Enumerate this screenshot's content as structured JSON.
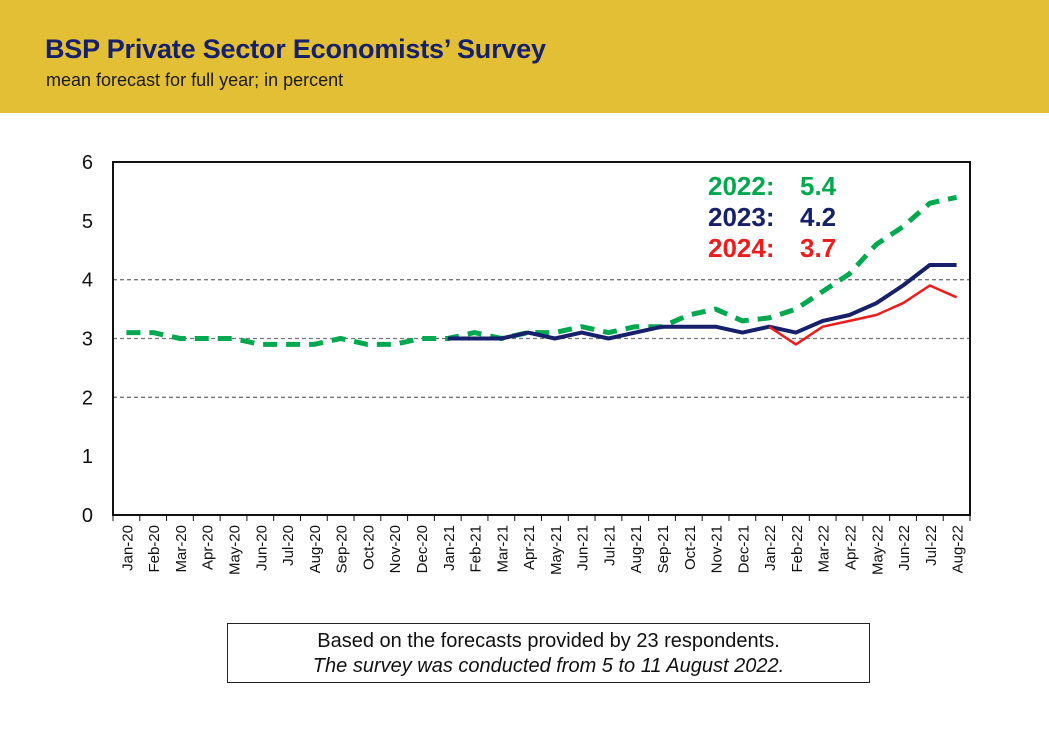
{
  "header": {
    "title": "BSP Private Sector Economists’ Survey",
    "subtitle": "mean forecast for full year; in percent"
  },
  "note": {
    "line1": "Based on the forecasts provided by 23 respondents.",
    "line2": "The survey was conducted from 5 to 11 August 2022."
  },
  "colors": {
    "header_bg": "#e2bf35",
    "title": "#16206b",
    "series_2022": "#00a94f",
    "series_2023": "#16206b",
    "series_2024": "#ee1c1c",
    "gridline": "#777777"
  },
  "chart_data": {
    "type": "line",
    "title": "",
    "xlabel": "",
    "ylabel": "",
    "ylim": [
      0,
      6
    ],
    "yticks": [
      "0",
      "1",
      "2",
      "3",
      "4",
      "5",
      "6"
    ],
    "gridlines_at": [
      2,
      3,
      4
    ],
    "categories": [
      "Jan-20",
      "Feb-20",
      "Mar-20",
      "Apr-20",
      "May-20",
      "Jun-20",
      "Jul-20",
      "Aug-20",
      "Sep-20",
      "Oct-20",
      "Nov-20",
      "Dec-20",
      "Jan-21",
      "Feb-21",
      "Mar-21",
      "Apr-21",
      "May-21",
      "Jun-21",
      "Jul-21",
      "Aug-21",
      "Sep-21",
      "Oct-21",
      "Nov-21",
      "Dec-21",
      "Jan-22",
      "Feb-22",
      "Mar-22",
      "Apr-22",
      "May-22",
      "Jun-22",
      "Jul-22",
      "Aug-22"
    ],
    "series": [
      {
        "name": "2022",
        "style": "dashed",
        "color": "#00a94f",
        "values": [
          3.1,
          3.1,
          3.0,
          3.0,
          3.0,
          2.9,
          2.9,
          2.9,
          3.0,
          2.9,
          2.9,
          3.0,
          3.0,
          3.1,
          3.0,
          3.1,
          3.1,
          3.2,
          3.1,
          3.2,
          3.2,
          3.4,
          3.5,
          3.3,
          3.35,
          3.5,
          3.8,
          4.1,
          4.6,
          4.9,
          5.3,
          5.4
        ]
      },
      {
        "name": "2023",
        "style": "solid",
        "color": "#16206b",
        "values": [
          null,
          null,
          null,
          null,
          null,
          null,
          null,
          null,
          null,
          null,
          null,
          null,
          3.0,
          3.0,
          3.0,
          3.1,
          3.0,
          3.1,
          3.0,
          3.1,
          3.2,
          3.2,
          3.2,
          3.1,
          3.2,
          3.1,
          3.3,
          3.4,
          3.6,
          3.9,
          4.25,
          4.25
        ]
      },
      {
        "name": "2024",
        "style": "solid",
        "color": "#ee1c1c",
        "values": [
          null,
          null,
          null,
          null,
          null,
          null,
          null,
          null,
          null,
          null,
          null,
          null,
          null,
          null,
          null,
          null,
          null,
          null,
          null,
          null,
          null,
          null,
          null,
          null,
          3.2,
          2.9,
          3.2,
          3.3,
          3.4,
          3.6,
          3.9,
          3.7
        ]
      }
    ],
    "legend": [
      {
        "label": "2022:",
        "value": "5.4",
        "color": "#00a94f"
      },
      {
        "label": "2023:",
        "value": "4.2",
        "color": "#16206b"
      },
      {
        "label": "2024:",
        "value": "3.7",
        "color": "#ee1c1c"
      }
    ],
    "legend_position": "top-right"
  }
}
